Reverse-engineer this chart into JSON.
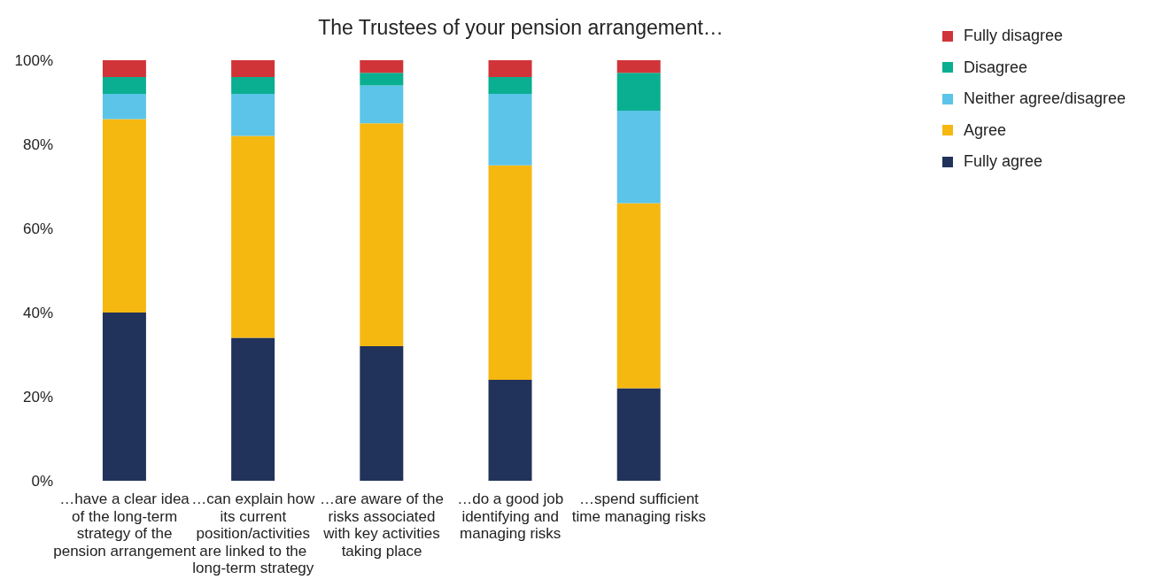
{
  "chart_data": {
    "type": "bar",
    "title": "The Trustees of your pension arrangement…",
    "stacked": true,
    "categories": [
      "…have a clear idea of the long-term strategy of the pension arrangement",
      "…can explain how its current position/activities are linked to the long-term strategy",
      "…are aware of the risks associated with key activities taking place",
      "…do a good job identifying and managing risks",
      "…spend sufficient time managing risks"
    ],
    "series": [
      {
        "name": "Fully agree",
        "color": "#21325b",
        "values": [
          40,
          34,
          32,
          24,
          22
        ]
      },
      {
        "name": "Agree",
        "color": "#f5b811",
        "values": [
          46,
          48,
          53,
          51,
          44
        ]
      },
      {
        "name": "Neither agree/disagree",
        "color": "#5bc4e8",
        "values": [
          6,
          10,
          9,
          17,
          22
        ]
      },
      {
        "name": "Disagree",
        "color": "#0aae90",
        "values": [
          4,
          4,
          3,
          4,
          9
        ]
      },
      {
        "name": "Fully disagree",
        "color": "#d13438",
        "values": [
          4,
          4,
          3,
          4,
          3
        ]
      }
    ],
    "ylim": [
      0,
      100
    ],
    "yticks": [
      {
        "value": 0,
        "label": "0%"
      },
      {
        "value": 20,
        "label": "20%"
      },
      {
        "value": 40,
        "label": "40%"
      },
      {
        "value": 60,
        "label": "60%"
      },
      {
        "value": 80,
        "label": "80%"
      },
      {
        "value": 100,
        "label": "100%"
      }
    ],
    "grid": false,
    "legend": "top right"
  }
}
